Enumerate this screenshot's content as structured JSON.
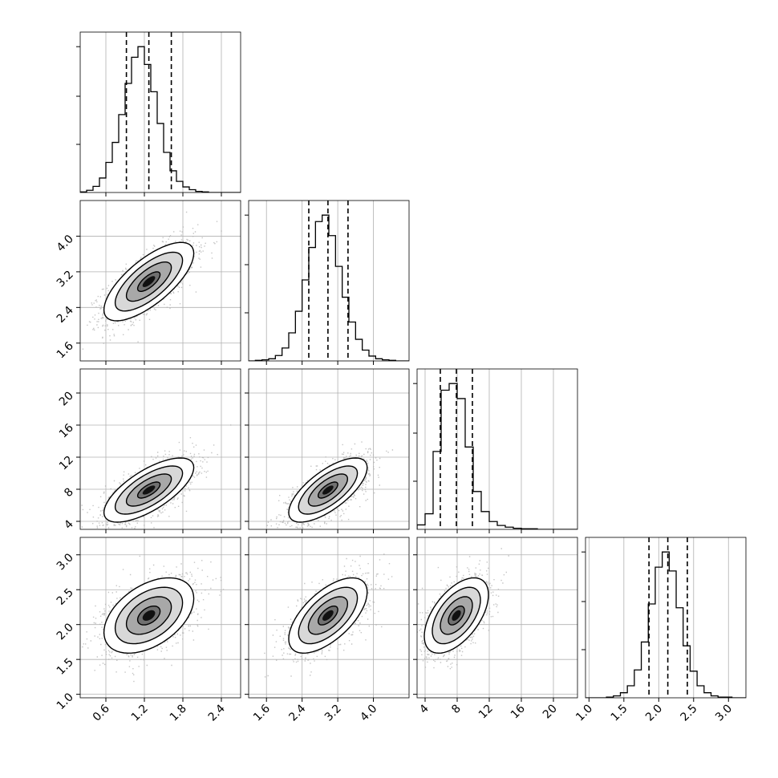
{
  "chart_data": {
    "type": "corner",
    "grid": true,
    "title": "",
    "parameters": [
      {
        "range": [
          0.2,
          2.7
        ],
        "ticks": [
          "0.6",
          "1.2",
          "1.8",
          "2.4"
        ],
        "tick_values": [
          0.6,
          1.2,
          1.8,
          2.4
        ],
        "quantiles": [
          0.92,
          1.27,
          1.62
        ],
        "hist_edges_start": 0.2,
        "hist_bin": 0.1,
        "hist_counts": [
          1,
          4,
          11,
          26,
          54,
          90,
          140,
          196,
          243,
          262,
          230,
          181,
          124,
          72,
          39,
          20,
          10,
          5,
          2,
          1,
          0,
          0,
          0,
          0,
          0
        ]
      },
      {
        "range": [
          1.2,
          4.8
        ],
        "ticks": [
          "1.6",
          "2.4",
          "3.2",
          "4.0"
        ],
        "tick_values": [
          1.6,
          2.4,
          3.2,
          4.0
        ],
        "quantiles": [
          2.55,
          2.98,
          3.43
        ],
        "hist_edges_start": 1.2,
        "hist_bin": 0.15,
        "hist_counts": [
          0,
          1,
          2,
          4,
          10,
          24,
          52,
          92,
          150,
          210,
          258,
          270,
          232,
          175,
          118,
          72,
          40,
          20,
          9,
          4,
          2,
          1,
          0,
          0
        ]
      },
      {
        "range": [
          3.0,
          23.0
        ],
        "ticks": [
          "4",
          "8",
          "12",
          "16",
          "20"
        ],
        "tick_values": [
          4,
          8,
          12,
          16,
          20
        ],
        "quantiles": [
          5.9,
          7.9,
          9.9
        ],
        "hist_edges_start": 3.0,
        "hist_bin": 1.0,
        "hist_counts": [
          8,
          28,
          140,
          250,
          262,
          235,
          148,
          68,
          32,
          14,
          7,
          4,
          2,
          1,
          1,
          0,
          0,
          0,
          0,
          0
        ]
      },
      {
        "range": [
          0.95,
          3.25
        ],
        "ticks": [
          "1.0",
          "1.5",
          "2.0",
          "2.5",
          "3.0"
        ],
        "tick_values": [
          1.0,
          1.5,
          2.0,
          2.5,
          3.0
        ],
        "quantiles": [
          1.86,
          2.13,
          2.41
        ],
        "hist_edges_start": 0.95,
        "hist_bin": 0.1,
        "hist_counts": [
          0,
          0,
          0,
          1,
          3,
          8,
          19,
          44,
          88,
          148,
          206,
          230,
          200,
          142,
          82,
          42,
          19,
          8,
          3,
          1,
          1,
          0,
          0
        ]
      }
    ],
    "pairs": [
      {
        "row": 1,
        "col": 0,
        "mean": [
          1.27,
          2.98
        ],
        "sd": [
          0.35,
          0.44
        ],
        "rho": 0.72
      },
      {
        "row": 2,
        "col": 0,
        "mean": [
          1.27,
          7.9
        ],
        "sd": [
          0.35,
          2.0
        ],
        "rho": 0.7
      },
      {
        "row": 2,
        "col": 1,
        "mean": [
          2.98,
          7.9
        ],
        "sd": [
          0.44,
          2.0
        ],
        "rho": 0.7
      },
      {
        "row": 3,
        "col": 0,
        "mean": [
          1.27,
          2.13
        ],
        "sd": [
          0.35,
          0.27
        ],
        "rho": 0.45
      },
      {
        "row": 3,
        "col": 1,
        "mean": [
          2.98,
          2.13
        ],
        "sd": [
          0.44,
          0.27
        ],
        "rho": 0.62
      },
      {
        "row": 3,
        "col": 2,
        "mean": [
          7.9,
          2.13
        ],
        "sd": [
          2.0,
          0.27
        ],
        "rho": 0.55
      }
    ],
    "contour_levels_sigma": [
      0.5,
      1.0,
      1.5,
      2.0
    ],
    "colors": {
      "line": "#000000",
      "points": "#b0b0b0",
      "grid": "#b0b0b0",
      "frame": "#000000",
      "fill_light": "#ffffff",
      "fill_dark": "#000000"
    }
  }
}
